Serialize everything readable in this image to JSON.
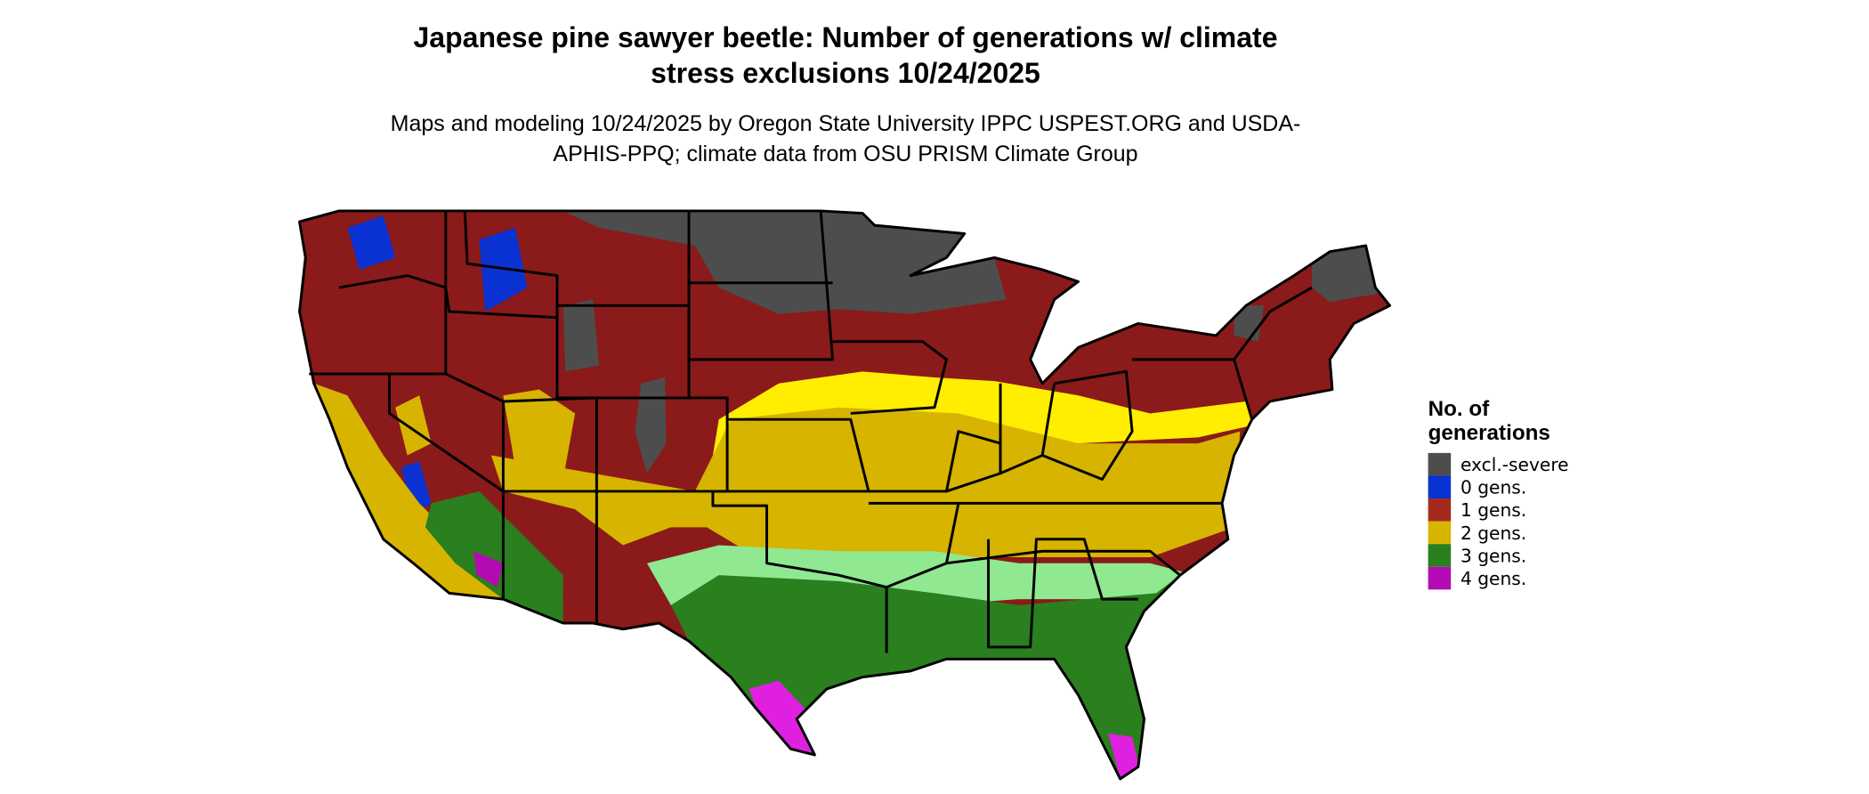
{
  "title": "Japanese pine sawyer beetle: Number of generations w/ climate stress exclusions 10/24/2025",
  "subtitle": "Maps and modeling 10/24/2025 by Oregon State University IPPC USPEST.ORG and USDA-APHIS-PPQ; climate data from OSU PRISM Climate Group",
  "legend": {
    "title": "No. of generations",
    "items": [
      {
        "label": "excl.-severe",
        "color": "#4d4d4d"
      },
      {
        "label": "0 gens.",
        "color": "#0a32d2"
      },
      {
        "label": "1 gens.",
        "color": "#a52a1e"
      },
      {
        "label": "2 gens.",
        "color": "#d7b400"
      },
      {
        "label": "3 gens.",
        "color": "#2a7f1e"
      },
      {
        "label": "4 gens.",
        "color": "#b40ab4"
      }
    ]
  }
}
